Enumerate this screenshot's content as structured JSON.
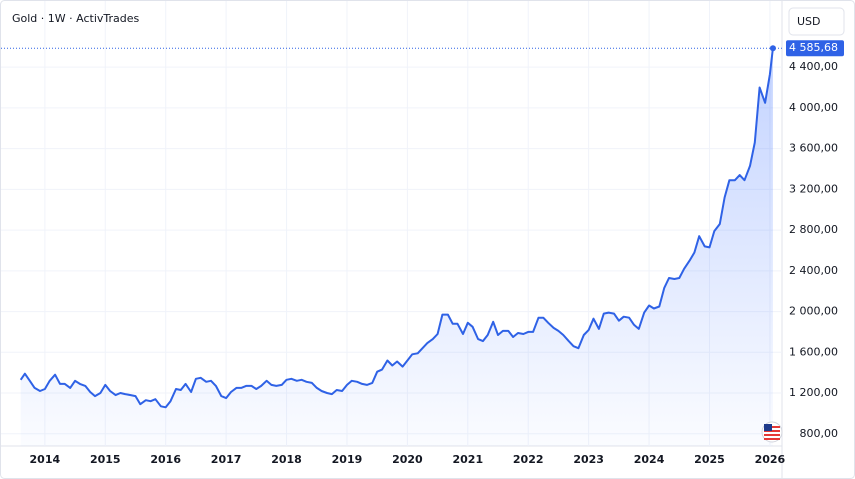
{
  "chart_data": {
    "type": "area",
    "title": "Gold · 1W · ActivTrades",
    "currency": "USD",
    "last_price_label": "4 585,68",
    "color": "#2f62e6",
    "grid": true,
    "xlim": [
      2013.39,
      2026.2
    ],
    "xticks": [
      2014,
      2015,
      2016,
      2017,
      2018,
      2019,
      2020,
      2021,
      2022,
      2023,
      2024,
      2025,
      2026
    ],
    "ylim": [
      680,
      5020
    ],
    "yticks": [
      {
        "value": 800,
        "label": "800,00"
      },
      {
        "value": 1200,
        "label": "1 200,00"
      },
      {
        "value": 1600,
        "label": "1 600,00"
      },
      {
        "value": 2000,
        "label": "2 000,00"
      },
      {
        "value": 2400,
        "label": "2 400,00"
      },
      {
        "value": 2800,
        "label": "2 800,00"
      },
      {
        "value": 3200,
        "label": "3 200,00"
      },
      {
        "value": 3600,
        "label": "3 600,00"
      },
      {
        "value": 4000,
        "label": "4 000,00"
      },
      {
        "value": 4400,
        "label": "4 400,00"
      }
    ],
    "series": [
      {
        "name": "Gold",
        "x": [
          2013.6,
          2013.67,
          2013.75,
          2013.83,
          2013.92,
          2014.0,
          2014.08,
          2014.17,
          2014.25,
          2014.33,
          2014.42,
          2014.5,
          2014.58,
          2014.67,
          2014.75,
          2014.83,
          2014.92,
          2015.0,
          2015.08,
          2015.17,
          2015.25,
          2015.33,
          2015.42,
          2015.5,
          2015.58,
          2015.67,
          2015.75,
          2015.83,
          2015.92,
          2016.0,
          2016.08,
          2016.17,
          2016.25,
          2016.33,
          2016.42,
          2016.5,
          2016.58,
          2016.67,
          2016.75,
          2016.83,
          2016.92,
          2017.0,
          2017.08,
          2017.17,
          2017.25,
          2017.33,
          2017.42,
          2017.5,
          2017.58,
          2017.67,
          2017.75,
          2017.83,
          2017.92,
          2018.0,
          2018.08,
          2018.17,
          2018.25,
          2018.33,
          2018.42,
          2018.5,
          2018.58,
          2018.67,
          2018.75,
          2018.83,
          2018.92,
          2019.0,
          2019.08,
          2019.17,
          2019.25,
          2019.33,
          2019.42,
          2019.5,
          2019.58,
          2019.67,
          2019.75,
          2019.83,
          2019.92,
          2020.0,
          2020.08,
          2020.17,
          2020.25,
          2020.33,
          2020.42,
          2020.5,
          2020.58,
          2020.67,
          2020.75,
          2020.83,
          2020.92,
          2021.0,
          2021.08,
          2021.17,
          2021.25,
          2021.33,
          2021.42,
          2021.5,
          2021.58,
          2021.67,
          2021.75,
          2021.83,
          2021.92,
          2022.0,
          2022.08,
          2022.17,
          2022.25,
          2022.33,
          2022.42,
          2022.5,
          2022.58,
          2022.67,
          2022.75,
          2022.83,
          2022.92,
          2023.0,
          2023.08,
          2023.17,
          2023.25,
          2023.33,
          2023.42,
          2023.5,
          2023.58,
          2023.67,
          2023.75,
          2023.83,
          2023.92,
          2024.0,
          2024.08,
          2024.17,
          2024.25,
          2024.33,
          2024.42,
          2024.5,
          2024.58,
          2024.67,
          2024.75,
          2024.83,
          2024.92,
          2025.0,
          2025.08,
          2025.17,
          2025.25,
          2025.33,
          2025.42,
          2025.5,
          2025.58,
          2025.67,
          2025.75,
          2025.83,
          2025.92,
          2026.0,
          2026.05
        ],
        "values": [
          1330,
          1390,
          1320,
          1250,
          1220,
          1240,
          1320,
          1380,
          1290,
          1290,
          1250,
          1320,
          1290,
          1270,
          1210,
          1170,
          1200,
          1280,
          1220,
          1180,
          1200,
          1190,
          1180,
          1170,
          1090,
          1130,
          1120,
          1140,
          1070,
          1060,
          1120,
          1240,
          1230,
          1290,
          1210,
          1340,
          1350,
          1310,
          1320,
          1270,
          1170,
          1150,
          1210,
          1250,
          1250,
          1270,
          1270,
          1240,
          1270,
          1320,
          1280,
          1270,
          1280,
          1330,
          1340,
          1320,
          1330,
          1310,
          1300,
          1250,
          1220,
          1200,
          1190,
          1230,
          1220,
          1280,
          1320,
          1310,
          1290,
          1280,
          1300,
          1410,
          1430,
          1520,
          1470,
          1510,
          1460,
          1520,
          1580,
          1590,
          1640,
          1690,
          1730,
          1780,
          1970,
          1970,
          1880,
          1880,
          1780,
          1890,
          1850,
          1730,
          1710,
          1770,
          1900,
          1770,
          1810,
          1810,
          1750,
          1790,
          1780,
          1800,
          1800,
          1940,
          1940,
          1890,
          1840,
          1810,
          1770,
          1710,
          1660,
          1640,
          1770,
          1820,
          1930,
          1830,
          1980,
          1990,
          1980,
          1910,
          1950,
          1940,
          1870,
          1830,
          1990,
          2060,
          2030,
          2050,
          2230,
          2330,
          2320,
          2330,
          2420,
          2500,
          2580,
          2740,
          2640,
          2630,
          2790,
          2860,
          3120,
          3290,
          3290,
          3340,
          3290,
          3430,
          3660,
          4200,
          4050,
          4330,
          4585.68
        ]
      }
    ]
  }
}
